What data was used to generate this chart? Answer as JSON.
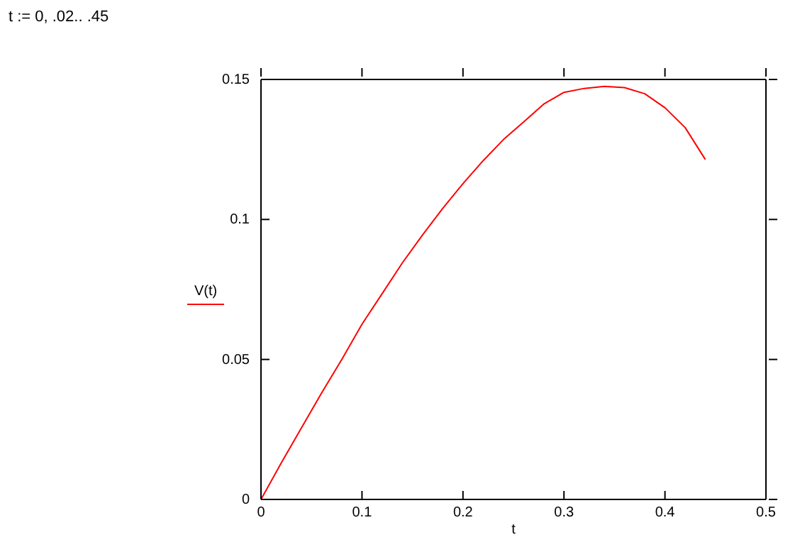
{
  "chart_data": {
    "type": "line",
    "annotations": [
      "t := 0, .02.. .45"
    ],
    "xlabel": "t",
    "ylabel": "V(t)",
    "x": [
      0,
      0.02,
      0.04,
      0.06,
      0.08,
      0.1,
      0.12,
      0.14,
      0.16,
      0.18,
      0.2,
      0.22,
      0.24,
      0.26,
      0.28,
      0.3,
      0.32,
      0.34,
      0.36,
      0.38,
      0.4,
      0.42,
      0.44
    ],
    "series": [
      {
        "color": "#ff0000",
        "values": [
          0,
          0.013,
          0.0255,
          0.038,
          0.05,
          0.0626,
          0.0735,
          0.0845,
          0.0945,
          0.104,
          0.1128,
          0.121,
          0.1285,
          0.1348,
          0.1412,
          0.1454,
          0.1468,
          0.1475,
          0.1471,
          0.1449,
          0.1399,
          0.1328,
          0.1214
        ]
      }
    ],
    "xlim": [
      0,
      0.5
    ],
    "xticks": [
      0,
      0.1,
      0.2,
      0.3,
      0.4,
      0.5
    ],
    "ylim": [
      0,
      0.15
    ],
    "yticks": [
      0,
      0.05,
      0.1,
      0.15
    ],
    "grid": false,
    "legend": false,
    "marker": "none",
    "line_style": "solid"
  }
}
